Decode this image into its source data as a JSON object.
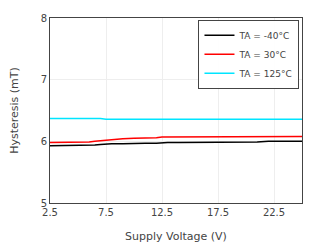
{
  "chart_data": {
    "type": "line",
    "xlabel": "Supply Voltage (V)",
    "ylabel": "Hysteresis (mT)",
    "xlim": [
      2.5,
      25
    ],
    "ylim": [
      5,
      8
    ],
    "xticks": [
      2.5,
      7.5,
      12.5,
      17.5,
      22.5
    ],
    "yticks": [
      5,
      6,
      7,
      8
    ],
    "grid": true,
    "legend": "upper right",
    "series": [
      {
        "name": "TA = -40°C",
        "color": "#000000",
        "x": [
          2.5,
          3.5,
          4.5,
          5.5,
          6.0,
          6.5,
          7.0,
          7.5,
          8.0,
          9.0,
          10.0,
          11.0,
          12.0,
          12.5,
          13.0,
          14.0,
          15.0,
          16.0,
          17.0,
          17.5,
          18.0,
          19.0,
          20.0,
          21.0,
          22.0,
          22.5,
          23.0,
          24.0,
          25.0
        ],
        "values": [
          5.93,
          5.93,
          5.93,
          5.93,
          5.93,
          5.94,
          5.95,
          5.96,
          5.96,
          5.96,
          5.97,
          5.97,
          5.97,
          5.98,
          5.98,
          5.98,
          5.98,
          5.98,
          5.98,
          5.99,
          5.99,
          5.99,
          5.99,
          5.99,
          6.0,
          6.0,
          6.0,
          6.0,
          6.0
        ]
      },
      {
        "name": "TA = 30°C",
        "color": "#ff0000",
        "x": [
          2.5,
          3.5,
          4.5,
          5.5,
          6.0,
          6.5,
          7.0,
          7.5,
          8.0,
          9.0,
          10.0,
          10.5,
          11.0,
          11.5,
          12.0,
          12.5,
          13.0,
          14.0,
          15.0,
          16.0,
          17.0,
          18.0,
          19.0,
          20.0,
          21.0,
          22.0,
          22.5,
          23.0,
          24.0,
          25.0
        ],
        "values": [
          5.98,
          5.98,
          5.98,
          5.99,
          5.99,
          6.0,
          6.01,
          6.02,
          6.03,
          6.04,
          6.05,
          6.05,
          6.06,
          6.06,
          6.06,
          6.07,
          6.07,
          6.07,
          6.07,
          6.07,
          6.07,
          6.07,
          6.08,
          6.08,
          6.08,
          6.08,
          6.08,
          6.08,
          6.08,
          6.08
        ]
      },
      {
        "name": "TA = 125°C",
        "color": "#00e5ff",
        "x": [
          2.5,
          3.5,
          4.5,
          5.5,
          6.0,
          6.5,
          7.0,
          7.5,
          8.0,
          9.0,
          10.0,
          11.0,
          12.0,
          12.5,
          13.0,
          14.0,
          15.0,
          16.0,
          17.0,
          18.0,
          19.0,
          20.0,
          21.0,
          22.0,
          22.5,
          23.0,
          24.0,
          25.0
        ],
        "values": [
          6.37,
          6.37,
          6.37,
          6.38,
          6.38,
          6.38,
          6.37,
          6.36,
          6.36,
          6.36,
          6.36,
          6.36,
          6.36,
          6.36,
          6.36,
          6.36,
          6.36,
          6.36,
          6.36,
          6.36,
          6.36,
          6.36,
          6.36,
          6.36,
          6.36,
          6.36,
          6.36,
          6.36
        ]
      }
    ]
  }
}
